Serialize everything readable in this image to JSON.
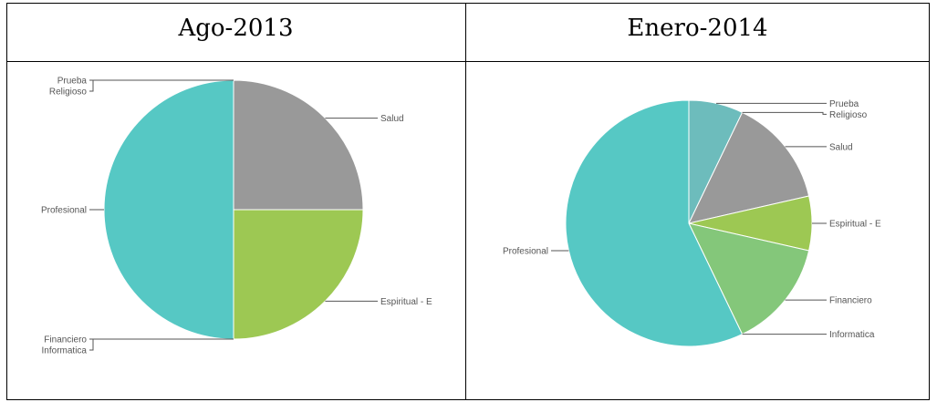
{
  "table": {
    "headers": [
      "Ago-2013",
      "Enero-2014"
    ]
  },
  "colors": {
    "Prueba": "#6dbcbc",
    "Religioso": "#5cc2c2",
    "Salud": "#999999",
    "Espiritual - E": "#9dc853",
    "Financiero": "#84c77a",
    "Informatica": "#7a9a7a",
    "Profesional": "#56c8c4",
    "label_text": "#555555",
    "leader_line": "#555555",
    "slice_border": "#ffffff",
    "grid_border": "#000000"
  },
  "chart_data": [
    {
      "type": "pie",
      "title": "Ago-2013",
      "start_angle_deg": 90,
      "direction": "clockwise",
      "categories": [
        "Prueba",
        "Religioso",
        "Salud",
        "Espiritual - E",
        "Financiero",
        "Informatica",
        "Profesional"
      ],
      "values": [
        0,
        0,
        1,
        1,
        0,
        0,
        2
      ]
    },
    {
      "type": "pie",
      "title": "Enero-2014",
      "start_angle_deg": 90,
      "direction": "clockwise",
      "categories": [
        "Prueba",
        "Religioso",
        "Salud",
        "Espiritual - E",
        "Financiero",
        "Informatica",
        "Profesional"
      ],
      "values": [
        1,
        0,
        2,
        1,
        2,
        0,
        8
      ]
    }
  ]
}
